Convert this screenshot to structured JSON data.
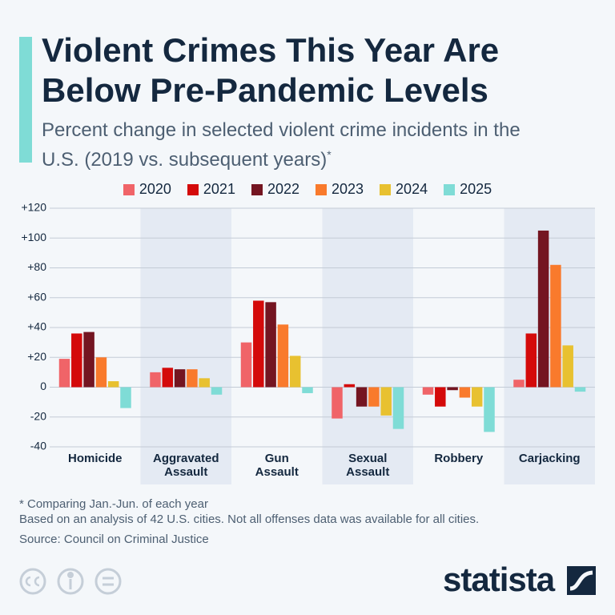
{
  "header": {
    "title": "Violent Crimes This Year Are Below Pre-Pandemic Levels",
    "subtitle": "Percent change in selected violent crime incidents in the U.S. (2019 vs. subsequent years)",
    "subtitle_mark": "*"
  },
  "chart_data": {
    "type": "bar",
    "categories": [
      "Homicide",
      "Aggravated Assault",
      "Gun Assault",
      "Sexual Assault",
      "Robbery",
      "Carjacking"
    ],
    "series": [
      {
        "name": "2020",
        "color": "#f06468",
        "values": [
          19,
          10,
          30,
          -21,
          -5,
          5
        ]
      },
      {
        "name": "2021",
        "color": "#d40a0a",
        "values": [
          36,
          13,
          58,
          2,
          -13,
          36
        ]
      },
      {
        "name": "2022",
        "color": "#741521",
        "values": [
          37,
          12,
          57,
          -13,
          -2,
          105
        ]
      },
      {
        "name": "2023",
        "color": "#f97a2c",
        "values": [
          20,
          12,
          42,
          -13,
          -7,
          82
        ]
      },
      {
        "name": "2024",
        "color": "#e8c130",
        "values": [
          4,
          6,
          21,
          -19,
          -13,
          28
        ]
      },
      {
        "name": "2025",
        "color": "#7fdcd6",
        "values": [
          -14,
          -5,
          -4,
          -28,
          -30,
          -3
        ]
      }
    ],
    "ylim": [
      -40,
      120
    ],
    "yticks": [
      -40,
      -20,
      0,
      {
        "value": 20,
        "label": "+20"
      },
      {
        "value": 40,
        "label": "+40"
      },
      {
        "value": 60,
        "label": "+60"
      },
      {
        "value": 80,
        "label": "+80"
      },
      {
        "value": 100,
        "label": "+100"
      },
      {
        "value": 120,
        "label": "+120"
      }
    ],
    "grid": true,
    "legend": "top"
  },
  "footer": {
    "notes": [
      "* Comparing Jan.-Jun. of each year",
      "Based on an analysis of 42 U.S. cities. Not all offenses data was available for all cities."
    ],
    "source": "Source: Council on Criminal Justice",
    "brand": "statista"
  }
}
